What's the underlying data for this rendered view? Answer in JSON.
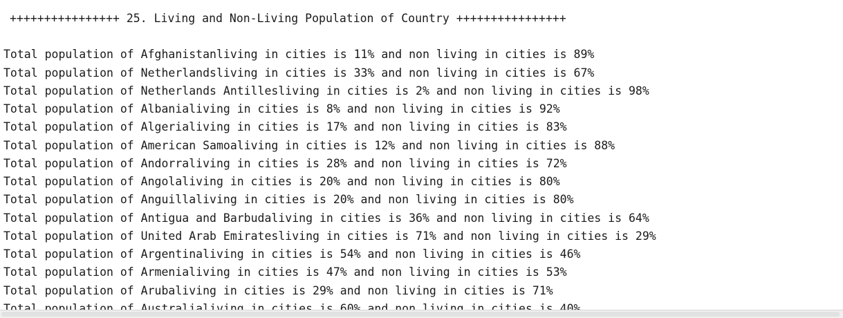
{
  "header": "++++++++++++++++ 25. Living and Non-Living Population of Country ++++++++++++++++",
  "lines": [
    "Total population of Afghanistanliving in cities is 11% and non living in cities is 89%",
    "Total population of Netherlandsliving in cities is 33% and non living in cities is 67%",
    "Total population of Netherlands Antillesliving in cities is 2% and non living in cities is 98%",
    "Total population of Albanialiving in cities is 8% and non living in cities is 92%",
    "Total population of Algerialiving in cities is 17% and non living in cities is 83%",
    "Total population of American Samoaliving in cities is 12% and non living in cities is 88%",
    "Total population of Andorraliving in cities is 28% and non living in cities is 72%",
    "Total population of Angolaliving in cities is 20% and non living in cities is 80%",
    "Total population of Anguillaliving in cities is 20% and non living in cities is 80%",
    "Total population of Antigua and Barbudaliving in cities is 36% and non living in cities is 64%",
    "Total population of United Arab Emiratesliving in cities is 71% and non living in cities is 29%",
    "Total population of Argentinaliving in cities is 54% and non living in cities is 46%",
    "Total population of Armenialiving in cities is 47% and non living in cities is 53%",
    "Total population of Arubaliving in cities is 29% and non living in cities is 71%",
    "Total population of Australialiving in cities is 60% and non living in cities is 40%"
  ]
}
